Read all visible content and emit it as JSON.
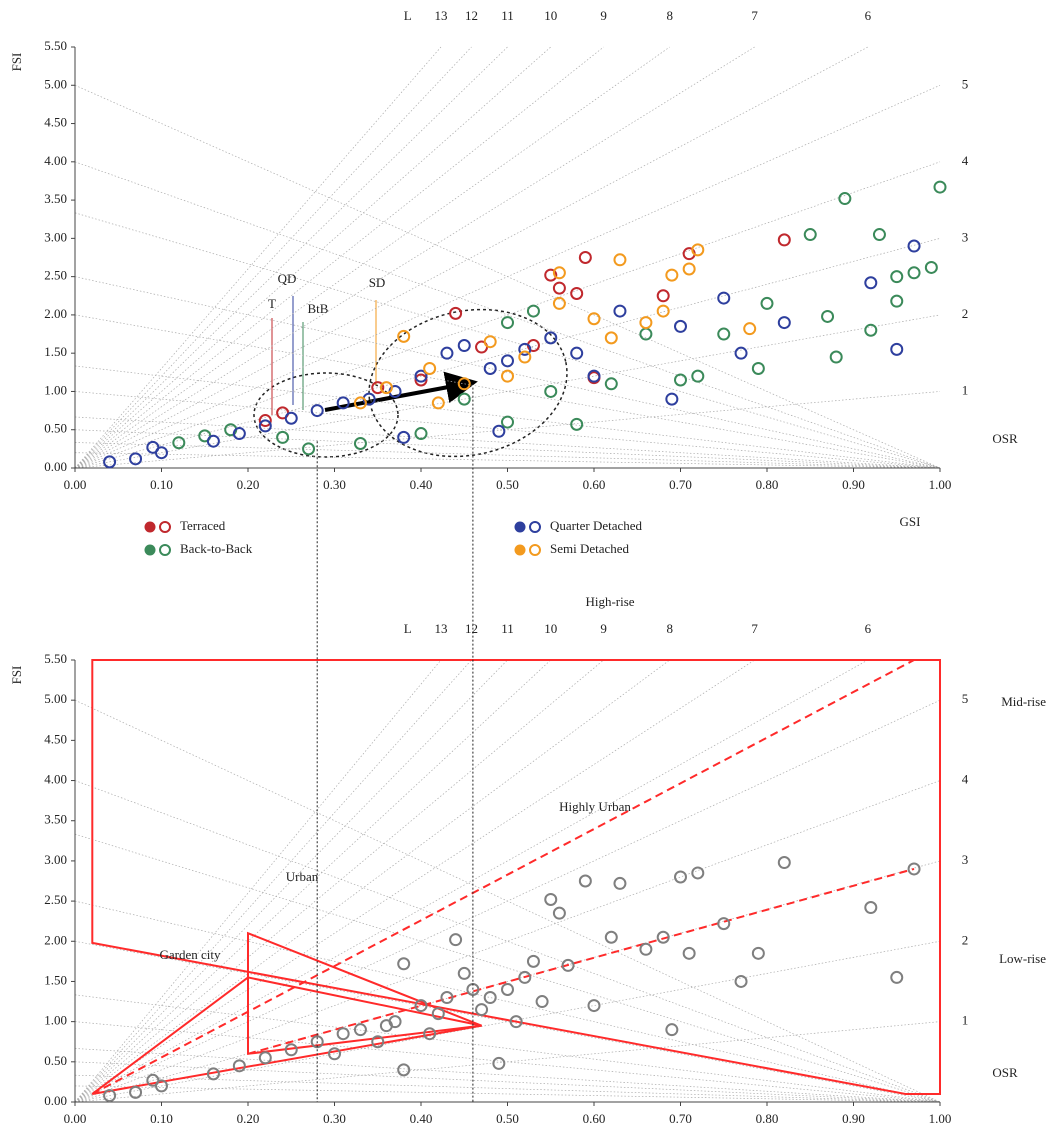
{
  "chart_data": [
    {
      "type": "scatter",
      "x_label": "GSI",
      "y_label": "FSI",
      "osr_label": "OSR",
      "l_label": "L",
      "xlim": [
        0,
        1
      ],
      "ylim": [
        0,
        5.5
      ],
      "xticks": [
        {
          "value": 0,
          "label": "0.00"
        },
        {
          "value": 0.1,
          "label": "0.10"
        },
        {
          "value": 0.2,
          "label": "0.20"
        },
        {
          "value": 0.3,
          "label": "0.30"
        },
        {
          "value": 0.4,
          "label": "0.40"
        },
        {
          "value": 0.5,
          "label": "0.50"
        },
        {
          "value": 0.6,
          "label": "0.60"
        },
        {
          "value": 0.7,
          "label": "0.70"
        },
        {
          "value": 0.8,
          "label": "0.80"
        },
        {
          "value": 0.9,
          "label": "0.90"
        },
        {
          "value": 1,
          "label": "1.00"
        }
      ],
      "yticks": [
        {
          "value": 0,
          "label": "0.00"
        },
        {
          "value": 0.5,
          "label": "0.50"
        },
        {
          "value": 1,
          "label": "1.00"
        },
        {
          "value": 1.5,
          "label": "1.50"
        },
        {
          "value": 2,
          "label": "2.00"
        },
        {
          "value": 2.5,
          "label": "2.50"
        },
        {
          "value": 3,
          "label": "3.00"
        },
        {
          "value": 3.5,
          "label": "3.50"
        },
        {
          "value": 4,
          "label": "4.00"
        },
        {
          "value": 4.5,
          "label": "4.50"
        },
        {
          "value": 5,
          "label": "5.00"
        },
        {
          "value": 5.5,
          "label": "5.50"
        }
      ],
      "l_lines": [
        1,
        2,
        3,
        4,
        5,
        6,
        7,
        8,
        9,
        10,
        11,
        12,
        13
      ],
      "osr_lines": [
        0.2,
        0.25,
        0.3,
        0.4,
        0.5,
        0.75,
        1,
        1.5,
        2,
        3,
        5
      ],
      "guides": [
        0.28,
        0.46
      ],
      "annotations": [
        {
          "text": "T",
          "color": "#c0282d"
        },
        {
          "text": "QD",
          "color": "#2e3f9e"
        },
        {
          "text": "BtB",
          "color": "#3b8a5a"
        },
        {
          "text": "SD",
          "color": "#f39a1e"
        }
      ],
      "series": [
        {
          "name": "Terraced",
          "color": "#c0282d",
          "x": [
            0.22,
            0.24,
            0.44,
            0.55,
            0.56,
            0.59,
            0.58,
            0.68,
            0.71,
            0.82,
            0.47,
            0.4,
            0.35,
            0.53,
            0.6
          ],
          "values": [
            0.62,
            0.72,
            2.02,
            2.52,
            2.35,
            2.75,
            2.28,
            2.25,
            2.8,
            2.98,
            1.58,
            1.15,
            1.05,
            1.6,
            1.18
          ]
        },
        {
          "name": "Back-to-Back",
          "color": "#3b8a5a",
          "x": [
            0.12,
            0.15,
            0.18,
            0.24,
            0.27,
            0.33,
            0.4,
            0.45,
            0.5,
            0.55,
            0.58,
            0.62,
            0.66,
            0.7,
            0.72,
            0.75,
            0.79,
            0.8,
            0.85,
            0.87,
            0.88,
            0.89,
            0.92,
            0.93,
            0.95,
            0.97,
            0.99,
            1.0,
            0.95,
            0.5,
            0.53
          ],
          "values": [
            0.33,
            0.42,
            0.5,
            0.4,
            0.25,
            0.32,
            0.45,
            0.9,
            0.6,
            1.0,
            0.57,
            1.1,
            1.75,
            1.15,
            1.2,
            1.75,
            1.3,
            2.15,
            3.05,
            1.98,
            1.45,
            3.52,
            1.8,
            3.05,
            2.5,
            2.55,
            2.62,
            3.67,
            2.18,
            1.9,
            2.05
          ]
        },
        {
          "name": "Quarter Detached",
          "color": "#2e3f9e",
          "x": [
            0.04,
            0.07,
            0.09,
            0.1,
            0.16,
            0.19,
            0.22,
            0.25,
            0.28,
            0.31,
            0.34,
            0.37,
            0.4,
            0.43,
            0.45,
            0.48,
            0.5,
            0.52,
            0.55,
            0.58,
            0.6,
            0.63,
            0.69,
            0.7,
            0.75,
            0.77,
            0.82,
            0.92,
            0.97,
            0.95,
            0.49,
            0.38
          ],
          "values": [
            0.08,
            0.12,
            0.27,
            0.2,
            0.35,
            0.45,
            0.55,
            0.65,
            0.75,
            0.85,
            0.9,
            1.0,
            1.2,
            1.5,
            1.6,
            1.3,
            1.4,
            1.55,
            1.7,
            1.5,
            1.2,
            2.05,
            0.9,
            1.85,
            2.22,
            1.5,
            1.9,
            2.42,
            2.9,
            1.55,
            0.48,
            0.4
          ]
        },
        {
          "name": "Semi Detached",
          "color": "#f39a1e",
          "x": [
            0.33,
            0.36,
            0.38,
            0.41,
            0.45,
            0.48,
            0.52,
            0.56,
            0.56,
            0.6,
            0.62,
            0.63,
            0.66,
            0.68,
            0.69,
            0.71,
            0.72,
            0.78,
            0.42,
            0.5
          ],
          "values": [
            0.85,
            1.05,
            1.72,
            1.3,
            1.1,
            1.65,
            1.45,
            2.15,
            2.55,
            1.95,
            1.7,
            2.72,
            1.9,
            2.05,
            2.52,
            2.6,
            2.85,
            1.82,
            0.85,
            1.2
          ]
        }
      ]
    },
    {
      "type": "scatter",
      "x_label": "GSI",
      "y_label": "FSI",
      "osr_label": "OSR",
      "l_label": "L",
      "xlim": [
        0,
        1
      ],
      "ylim": [
        0,
        5.5
      ],
      "xticks": [
        {
          "value": 0,
          "label": "0.00"
        },
        {
          "value": 0.1,
          "label": "0.10"
        },
        {
          "value": 0.2,
          "label": "0.20"
        },
        {
          "value": 0.3,
          "label": "0.30"
        },
        {
          "value": 0.4,
          "label": "0.40"
        },
        {
          "value": 0.5,
          "label": "0.50"
        },
        {
          "value": 0.6,
          "label": "0.60"
        },
        {
          "value": 0.7,
          "label": "0.70"
        },
        {
          "value": 0.8,
          "label": "0.80"
        },
        {
          "value": 0.9,
          "label": "0.90"
        },
        {
          "value": 1,
          "label": "1.00"
        }
      ],
      "yticks": [
        {
          "value": 0,
          "label": "0.00"
        },
        {
          "value": 0.5,
          "label": "0.50"
        },
        {
          "value": 1,
          "label": "1.00"
        },
        {
          "value": 1.5,
          "label": "1.50"
        },
        {
          "value": 2,
          "label": "2.00"
        },
        {
          "value": 2.5,
          "label": "2.50"
        },
        {
          "value": 3,
          "label": "3.00"
        },
        {
          "value": 3.5,
          "label": "3.50"
        },
        {
          "value": 4,
          "label": "4.00"
        },
        {
          "value": 4.5,
          "label": "4.50"
        },
        {
          "value": 5,
          "label": "5.00"
        },
        {
          "value": 5.5,
          "label": "5.50"
        }
      ],
      "l_lines": [
        1,
        2,
        3,
        4,
        5,
        6,
        7,
        8,
        9,
        10,
        11,
        12,
        13
      ],
      "osr_lines": [
        0.2,
        0.25,
        0.3,
        0.4,
        0.5,
        0.75,
        1,
        1.5,
        2,
        3,
        5
      ],
      "annotations": [
        {
          "text": "High-rise"
        },
        {
          "text": "Mid-rise"
        },
        {
          "text": "Low-rise"
        },
        {
          "text": "Highly Urban"
        },
        {
          "text": "Urban"
        },
        {
          "text": "Garden city"
        }
      ],
      "region_color": "#ff2a2a",
      "regions": [
        {
          "dashed": false,
          "points": [
            [
              0.02,
              5.5
            ],
            [
              1.0,
              5.5
            ],
            [
              1.0,
              0.1
            ],
            [
              0.96,
              0.1
            ],
            [
              0.02,
              1.98
            ]
          ]
        },
        {
          "dashed": false,
          "points": [
            [
              0.02,
              0.1
            ],
            [
              0.2,
              1.55
            ],
            [
              0.47,
              0.95
            ]
          ]
        },
        {
          "dashed": false,
          "points": [
            [
              0.2,
              2.1
            ],
            [
              0.2,
              0.6
            ],
            [
              0.47,
              0.95
            ]
          ]
        },
        {
          "dashed": true,
          "points": [
            [
              0.02,
              0.1
            ],
            [
              0.97,
              5.5
            ]
          ]
        },
        {
          "dashed": true,
          "points": [
            [
              0.2,
              0.6
            ],
            [
              0.97,
              2.9
            ]
          ]
        }
      ],
      "series": [
        {
          "color": "#7f7f7f",
          "x": [
            0.04,
            0.07,
            0.09,
            0.1,
            0.16,
            0.19,
            0.22,
            0.25,
            0.28,
            0.3,
            0.31,
            0.33,
            0.35,
            0.37,
            0.38,
            0.4,
            0.42,
            0.44,
            0.45,
            0.46,
            0.48,
            0.5,
            0.52,
            0.53,
            0.55,
            0.56,
            0.57,
            0.59,
            0.6,
            0.62,
            0.63,
            0.66,
            0.68,
            0.69,
            0.7,
            0.71,
            0.72,
            0.75,
            0.77,
            0.79,
            0.82,
            0.92,
            0.97,
            0.95,
            0.49,
            0.38,
            0.43,
            0.36,
            0.41,
            0.47,
            0.54,
            0.51
          ],
          "values": [
            0.08,
            0.12,
            0.27,
            0.2,
            0.35,
            0.45,
            0.55,
            0.65,
            0.75,
            0.6,
            0.85,
            0.9,
            0.75,
            1.0,
            1.72,
            1.2,
            1.1,
            2.02,
            1.6,
            1.4,
            1.3,
            1.4,
            1.55,
            1.75,
            2.52,
            2.35,
            1.7,
            2.75,
            1.2,
            2.05,
            2.72,
            1.9,
            2.05,
            0.9,
            2.8,
            1.85,
            2.85,
            2.22,
            1.5,
            1.85,
            2.98,
            2.42,
            2.9,
            1.55,
            0.48,
            0.4,
            1.3,
            0.95,
            0.85,
            1.15,
            1.25,
            1.0
          ]
        }
      ]
    }
  ]
}
